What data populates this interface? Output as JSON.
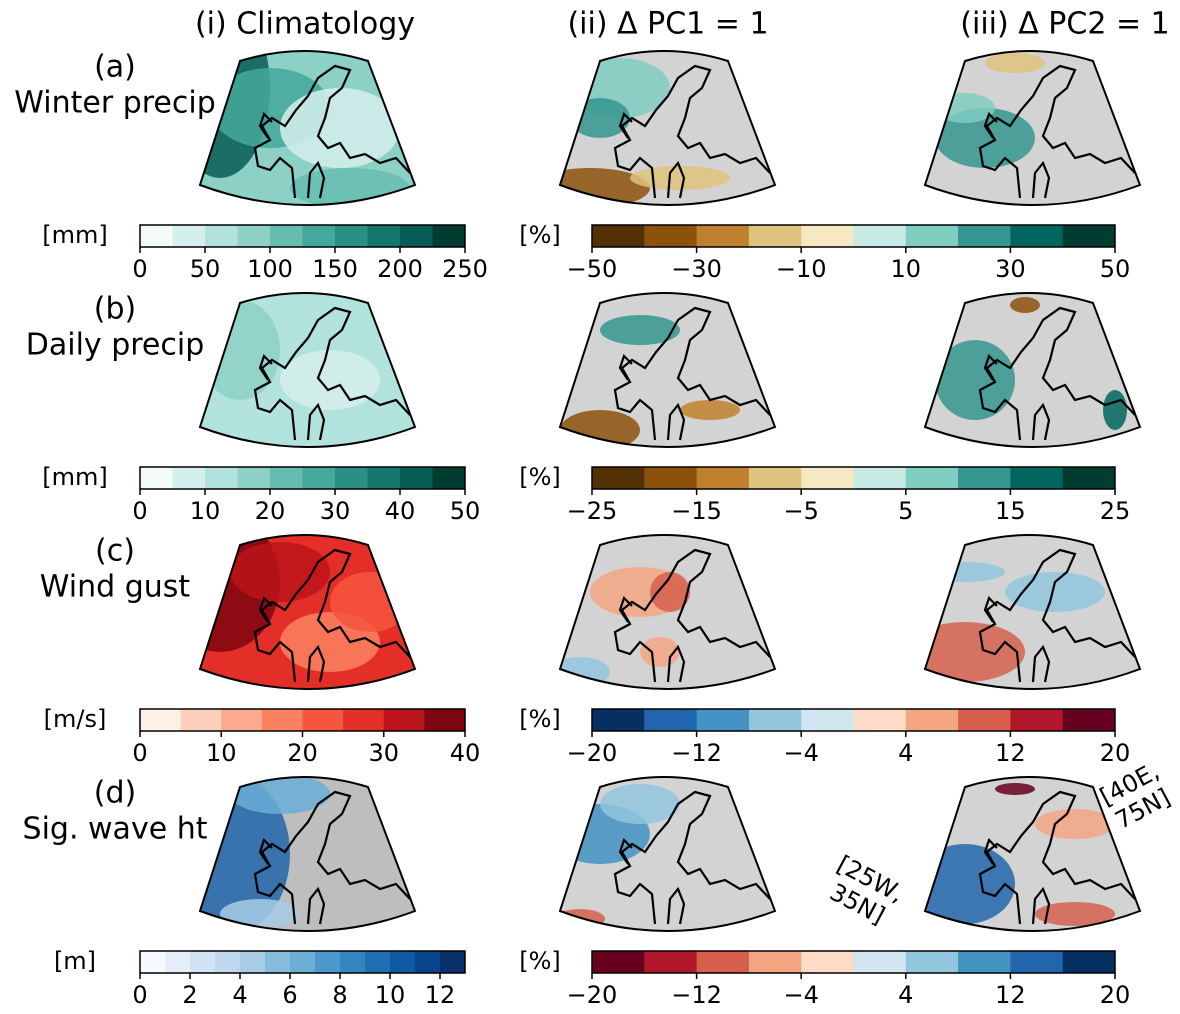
{
  "column_headers": [
    "(i) Climatology",
    "(ii) Δ PC1 = 1",
    "(iii) Δ PC2 = 1"
  ],
  "rows": [
    {
      "panel": "(a)",
      "label": "Winter precip",
      "left_colorbar": {
        "unit": "[mm]",
        "lim": [
          0,
          250
        ],
        "ticks": [
          0,
          50,
          100,
          150,
          200,
          250
        ],
        "colors": [
          "#f3faf8",
          "#d5efec",
          "#b2e2dc",
          "#8dd1c6",
          "#66bdb0",
          "#44a89b",
          "#2a9085",
          "#14766d",
          "#075c53",
          "#003c30"
        ]
      },
      "right_colorbar": {
        "unit": "[%]",
        "lim": [
          -50,
          50
        ],
        "ticks": [
          {
            "value": -50,
            "label": "−50"
          },
          {
            "value": -30,
            "label": "−30"
          },
          {
            "value": -10,
            "label": "−10"
          },
          10,
          30,
          50
        ],
        "colors": [
          "#543005",
          "#8c510a",
          "#bf812d",
          "#dfc27d",
          "#f6e8c3",
          "#c7eae5",
          "#80cdc1",
          "#35978f",
          "#01665e",
          "#003c30"
        ]
      }
    },
    {
      "panel": "(b)",
      "label": "Daily precip",
      "left_colorbar": {
        "unit": "[mm]",
        "lim": [
          0,
          50
        ],
        "ticks": [
          0,
          10,
          20,
          30,
          40,
          50
        ],
        "colors": [
          "#f3faf8",
          "#d5efec",
          "#b2e2dc",
          "#8dd1c6",
          "#66bdb0",
          "#44a89b",
          "#2a9085",
          "#14766d",
          "#075c53",
          "#003c30"
        ]
      },
      "right_colorbar": {
        "unit": "[%]",
        "lim": [
          -25,
          25
        ],
        "ticks": [
          {
            "value": -25,
            "label": "−25"
          },
          {
            "value": -15,
            "label": "−15"
          },
          {
            "value": -5,
            "label": "−5"
          },
          5,
          15,
          25
        ],
        "colors": [
          "#543005",
          "#8c510a",
          "#bf812d",
          "#dfc27d",
          "#f6e8c3",
          "#c7eae5",
          "#80cdc1",
          "#35978f",
          "#01665e",
          "#003c30"
        ]
      }
    },
    {
      "panel": "(c)",
      "label": "Wind gust",
      "left_colorbar": {
        "unit": "[m/s]",
        "lim": [
          0,
          40
        ],
        "ticks": [
          0,
          10,
          20,
          30,
          40
        ],
        "colors": [
          "#fff0ea",
          "#fdd0bc",
          "#fcaa8e",
          "#fc8161",
          "#f6553e",
          "#e32f27",
          "#bc141a",
          "#7f0510"
        ]
      },
      "right_colorbar": {
        "unit": "[%]",
        "lim": [
          -20,
          20
        ],
        "ticks": [
          {
            "value": -20,
            "label": "−20"
          },
          {
            "value": -12,
            "label": "−12"
          },
          {
            "value": -4,
            "label": "−4"
          },
          4,
          12,
          20
        ],
        "colors": [
          "#053061",
          "#2166ac",
          "#4393c3",
          "#92c5de",
          "#d1e5f0",
          "#fddbc7",
          "#f4a582",
          "#d6604d",
          "#b2182b",
          "#67001f"
        ]
      }
    },
    {
      "panel": "(d)",
      "label": "Sig. wave ht",
      "left_colorbar": {
        "unit": "[m]",
        "lim": [
          0,
          13
        ],
        "ticks": [
          0,
          2,
          4,
          6,
          8,
          10,
          12
        ],
        "colors": [
          "#f7fbff",
          "#e3eef9",
          "#d0e2f3",
          "#bfd8ed",
          "#a6cde4",
          "#87bbdc",
          "#6aaed6",
          "#4c98cb",
          "#3585c0",
          "#1f6fb2",
          "#0f5aa3",
          "#08468e",
          "#08306b"
        ]
      },
      "right_colorbar": {
        "unit": "[%]",
        "lim": [
          -20,
          20
        ],
        "ticks": [
          {
            "value": -20,
            "label": "−20"
          },
          {
            "value": -12,
            "label": "−12"
          },
          {
            "value": -4,
            "label": "−4"
          },
          4,
          12,
          20
        ],
        "colors": [
          "#67001f",
          "#b2182b",
          "#d6604d",
          "#f4a582",
          "#fddbc7",
          "#d1e5f0",
          "#92c5de",
          "#4393c3",
          "#2166ac",
          "#053061"
        ]
      }
    }
  ],
  "annotations": [
    [
      "[25W,",
      "35N]"
    ],
    [
      "[40E,",
      "75N]"
    ]
  ]
}
